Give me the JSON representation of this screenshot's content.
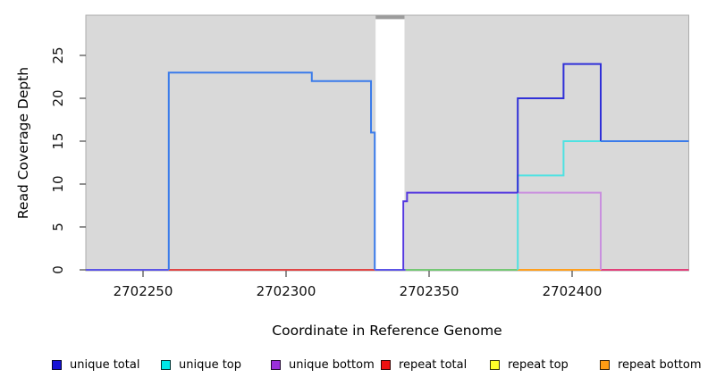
{
  "figure": {
    "x_axis_label": "Coordinate in Reference Genome",
    "y_axis_label": "Read Coverage Depth"
  },
  "axes": {
    "x": {
      "ticks": [
        "2702250",
        "2702300",
        "2702350",
        "2702400"
      ],
      "tick_values": [
        2702250,
        2702300,
        2702350,
        2702400
      ],
      "domain": [
        2702230,
        2702440.8
      ]
    },
    "y": {
      "ticks": [
        "0",
        "5",
        "10",
        "15",
        "20",
        "25"
      ],
      "tick_values": [
        0,
        5,
        10,
        15,
        20,
        25
      ],
      "domain": [
        0,
        29.7
      ]
    }
  },
  "chart_data": {
    "type": "line",
    "subtype": "step-coverage",
    "title": "",
    "xlabel": "Coordinate in Reference Genome",
    "ylabel": "Read Coverage Depth",
    "xlim": [
      2702230,
      2702441
    ],
    "ylim": [
      0,
      29.7
    ],
    "grid": false,
    "plot_background": "#D9D9D9",
    "plot_border": "#ACACAC",
    "series": [
      {
        "name": "unique total",
        "color": "#1612D6",
        "step_points": [
          [
            2702230,
            0
          ],
          [
            2702259,
            23
          ],
          [
            2702309,
            22
          ],
          [
            2702330,
            16
          ],
          [
            2702331,
            0
          ],
          [
            2702341,
            8
          ],
          [
            2702342,
            9
          ],
          [
            2702381,
            20
          ],
          [
            2702397,
            24
          ],
          [
            2702410,
            15
          ],
          [
            2702441,
            15
          ]
        ]
      },
      {
        "name": "unique top",
        "color": "#00E8E8",
        "step_points": [
          [
            2702230,
            0
          ],
          [
            2702259,
            23
          ],
          [
            2702309,
            22
          ],
          [
            2702330,
            16
          ],
          [
            2702331,
            0
          ],
          [
            2702381,
            11
          ],
          [
            2702397,
            15
          ],
          [
            2702441,
            15
          ]
        ]
      },
      {
        "name": "unique bottom",
        "color": "#9B30DB",
        "step_points": [
          [
            2702230,
            0
          ],
          [
            2702341,
            8
          ],
          [
            2702342,
            9
          ],
          [
            2702410,
            0
          ],
          [
            2702441,
            0
          ]
        ]
      },
      {
        "name": "repeat total",
        "color": "#EE1111",
        "step_points": [
          [
            2702230,
            0
          ],
          [
            2702441,
            0
          ]
        ]
      },
      {
        "name": "repeat top",
        "color": "#FFFF2A",
        "step_points": [
          [
            2702230,
            0
          ],
          [
            2702441,
            0
          ]
        ]
      },
      {
        "name": "repeat bottom",
        "color": "#FF9D14",
        "step_points": [
          [
            2702230,
            0
          ],
          [
            2702441,
            0
          ]
        ]
      }
    ],
    "mask_band": {
      "x_start": 2702331.3,
      "x_end": 2702341.4,
      "fill": "#FFFFFF",
      "strip_color": "#9C9C9C"
    },
    "rendered_polylines": [
      {
        "name": "unique-top-visible",
        "color": "#4EE2E2",
        "points": [
          [
            2702381,
            0
          ],
          [
            2702381,
            11
          ],
          [
            2702397,
            11
          ],
          [
            2702397,
            15
          ],
          [
            2702410,
            15
          ]
        ]
      },
      {
        "name": "unique-bottom-visible",
        "color": "#C98FDE",
        "points": [
          [
            2702381,
            9
          ],
          [
            2702410,
            9
          ],
          [
            2702410,
            0
          ]
        ]
      },
      {
        "name": "unique-left-hump",
        "color": "#3A7BEA",
        "points": [
          [
            2702259,
            0
          ],
          [
            2702259,
            23
          ],
          [
            2702309,
            23
          ],
          [
            2702309,
            22
          ],
          [
            2702329.7,
            22
          ],
          [
            2702329.7,
            16
          ],
          [
            2702331,
            16
          ],
          [
            2702331,
            0
          ]
        ]
      },
      {
        "name": "unique-gap-rise",
        "color": "#5438DF",
        "points": [
          [
            2702341,
            0
          ],
          [
            2702341,
            8
          ],
          [
            2702342.3,
            8
          ],
          [
            2702342.3,
            9
          ],
          [
            2702381,
            9
          ]
        ]
      },
      {
        "name": "unique-total-right",
        "color": "#3030D8",
        "points": [
          [
            2702381,
            9
          ],
          [
            2702381,
            20
          ],
          [
            2702397,
            20
          ],
          [
            2702397,
            24
          ],
          [
            2702410,
            24
          ],
          [
            2702410,
            15
          ]
        ]
      },
      {
        "name": "unique-fifteen-right",
        "color": "#3A7BEA",
        "points": [
          [
            2702410,
            15
          ],
          [
            2702440.8,
            15
          ]
        ]
      }
    ],
    "zero_line_segments": [
      {
        "x_start": 2702230,
        "x_end": 2702259,
        "color": "#5C55E6"
      },
      {
        "x_start": 2702259,
        "x_end": 2702331,
        "color": "#E04545"
      },
      {
        "x_start": 2702331,
        "x_end": 2702341.8,
        "color": "#5C55E6"
      },
      {
        "x_start": 2702341.8,
        "x_end": 2702381,
        "color": "#74C874"
      },
      {
        "x_start": 2702381,
        "x_end": 2702410,
        "color": "#FF9F1E"
      },
      {
        "x_start": 2702410,
        "x_end": 2702440.8,
        "color": "#E2407A"
      }
    ]
  },
  "legend": {
    "items": [
      {
        "label": "unique total",
        "color": "#1612D6"
      },
      {
        "label": "unique top",
        "color": "#00E8E8"
      },
      {
        "label": "unique bottom",
        "color": "#9B30DB"
      },
      {
        "label": "repeat total",
        "color": "#EE1111"
      },
      {
        "label": "repeat top",
        "color": "#FFFF2A"
      },
      {
        "label": "repeat bottom",
        "color": "#FF9D14"
      }
    ]
  }
}
